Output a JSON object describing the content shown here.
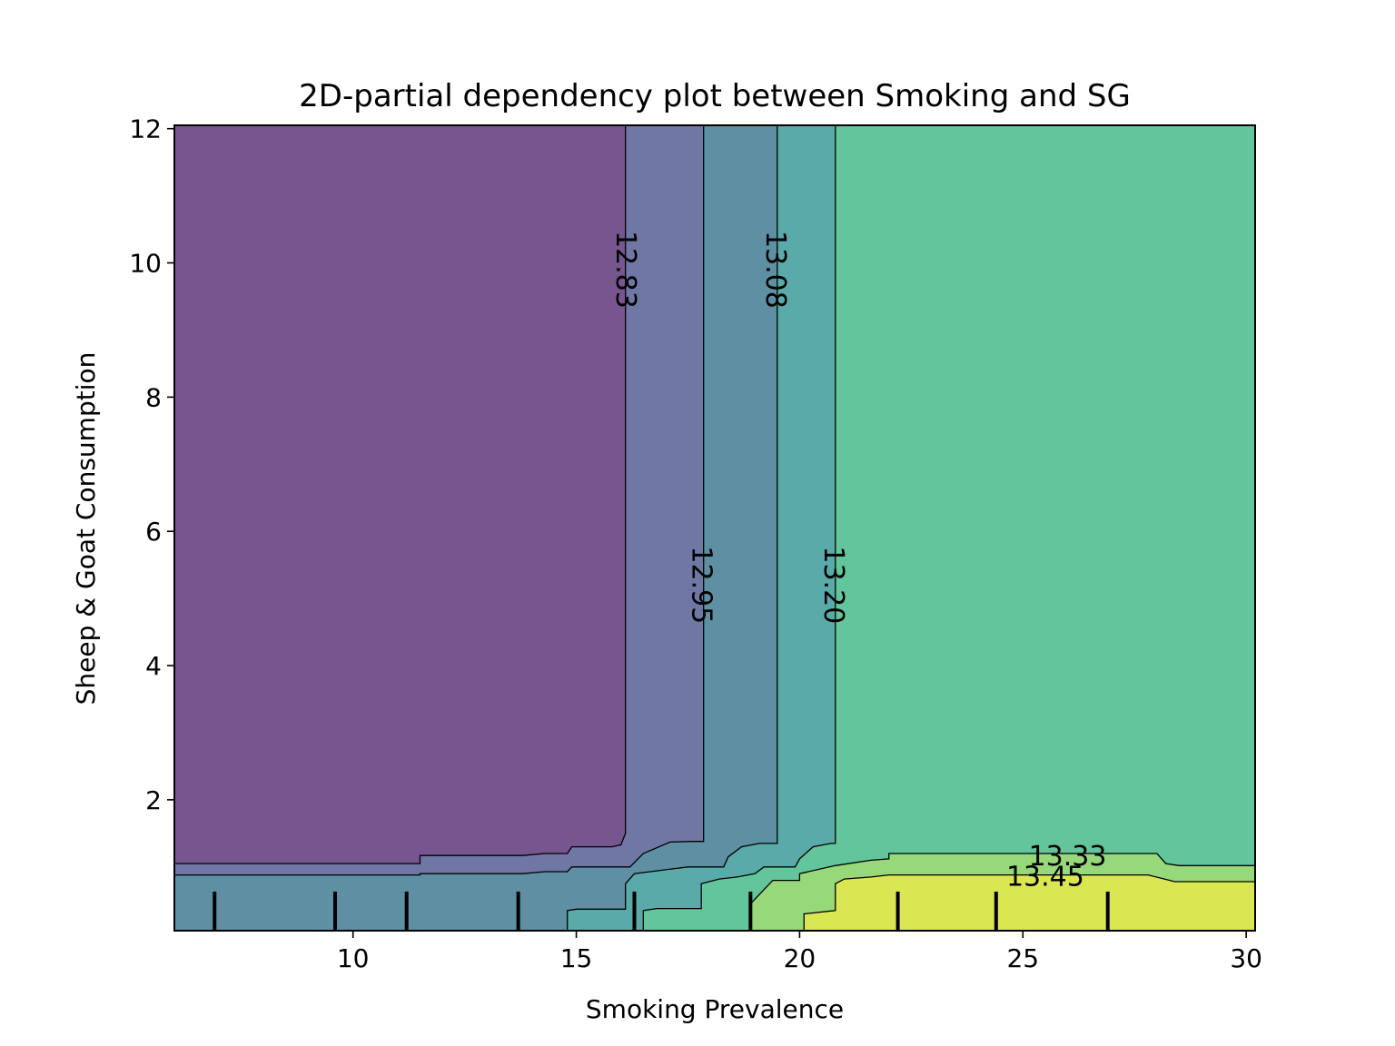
{
  "chart_data": {
    "type": "contour",
    "title": "2D-partial dependency plot between Smoking and SG",
    "xlabel": "Smoking Prevalence",
    "ylabel": "Sheep & Goat Consumption",
    "xlim": [
      6.0,
      30.2
    ],
    "ylim": [
      0.05,
      12.05
    ],
    "xticks": [
      10,
      15,
      20,
      25,
      30
    ],
    "yticks": [
      2,
      4,
      6,
      8,
      10,
      12
    ],
    "contour_levels": [
      12.83,
      12.95,
      13.08,
      13.2,
      13.33,
      13.45
    ],
    "contour_labels": [
      {
        "text": "12.83",
        "x": 16.1,
        "y": 9.9,
        "rotation": 90
      },
      {
        "text": "12.95",
        "x": 17.8,
        "y": 5.2,
        "rotation": 90
      },
      {
        "text": "13.08",
        "x": 19.45,
        "y": 9.9,
        "rotation": 90
      },
      {
        "text": "13.20",
        "x": 20.75,
        "y": 5.2,
        "rotation": 90
      },
      {
        "text": "13.33",
        "x": 26.0,
        "y": 1.15,
        "rotation": 0
      },
      {
        "text": "13.45",
        "x": 25.5,
        "y": 0.85,
        "rotation": 0
      }
    ],
    "bands": [
      {
        "range": "< 12.83",
        "color": "#77558f"
      },
      {
        "range": "12.83 - 12.95",
        "color": "#6f77a5"
      },
      {
        "range": "12.95 - 13.08",
        "color": "#5e8fa3"
      },
      {
        "range": "13.08 - 13.20",
        "color": "#59aaa8"
      },
      {
        "range": "13.20 - 13.33",
        "color": "#63c59b"
      },
      {
        "range": "13.33 - 13.45",
        "color": "#96d87a"
      },
      {
        "range": "> 13.45",
        "color": "#dbe653"
      }
    ],
    "x_deciles": [
      6.9,
      9.6,
      11.2,
      13.7,
      16.3,
      18.9,
      22.2,
      24.4,
      26.9
    ],
    "boundaries": [
      {
        "level": 12.83,
        "points": [
          [
            6.0,
            1.05
          ],
          [
            11.5,
            1.05
          ],
          [
            11.5,
            1.17
          ],
          [
            13.8,
            1.17
          ],
          [
            14.3,
            1.2
          ],
          [
            14.8,
            1.2
          ],
          [
            14.9,
            1.3
          ],
          [
            15.8,
            1.3
          ],
          [
            16.0,
            1.33
          ],
          [
            16.1,
            1.5
          ],
          [
            16.1,
            12.05
          ]
        ]
      },
      {
        "level": 12.95,
        "points": [
          [
            6.0,
            0.88
          ],
          [
            11.5,
            0.88
          ],
          [
            11.5,
            0.9
          ],
          [
            13.8,
            0.9
          ],
          [
            14.3,
            0.93
          ],
          [
            14.8,
            0.93
          ],
          [
            14.9,
            1.0
          ],
          [
            15.4,
            1.0
          ],
          [
            16.2,
            1.0
          ],
          [
            16.5,
            1.2
          ],
          [
            17.1,
            1.37
          ],
          [
            17.6,
            1.38
          ],
          [
            17.85,
            1.38
          ],
          [
            17.85,
            12.05
          ]
        ]
      },
      {
        "level": 13.08,
        "points": [
          [
            14.8,
            0.05
          ],
          [
            14.8,
            0.35
          ],
          [
            15.0,
            0.37
          ],
          [
            16.1,
            0.37
          ],
          [
            16.1,
            0.75
          ],
          [
            16.3,
            0.9
          ],
          [
            16.9,
            0.95
          ],
          [
            17.5,
            1.0
          ],
          [
            18.3,
            1.0
          ],
          [
            18.4,
            1.15
          ],
          [
            18.7,
            1.3
          ],
          [
            19.1,
            1.35
          ],
          [
            19.5,
            1.35
          ],
          [
            19.5,
            12.05
          ]
        ]
      },
      {
        "level": 13.2,
        "points": [
          [
            16.5,
            0.05
          ],
          [
            16.5,
            0.35
          ],
          [
            16.8,
            0.38
          ],
          [
            17.8,
            0.38
          ],
          [
            17.8,
            0.75
          ],
          [
            18.2,
            0.82
          ],
          [
            18.6,
            0.85
          ],
          [
            19.0,
            0.9
          ],
          [
            19.2,
            1.0
          ],
          [
            19.9,
            1.0
          ],
          [
            20.0,
            1.12
          ],
          [
            20.3,
            1.3
          ],
          [
            20.7,
            1.35
          ],
          [
            20.8,
            1.35
          ],
          [
            20.8,
            12.05
          ]
        ]
      },
      {
        "level": 13.33,
        "points": [
          [
            18.9,
            0.05
          ],
          [
            18.9,
            0.45
          ],
          [
            19.4,
            0.8
          ],
          [
            20.0,
            0.8
          ],
          [
            20.0,
            0.9
          ],
          [
            20.8,
            1.02
          ],
          [
            21.6,
            1.1
          ],
          [
            22.0,
            1.12
          ],
          [
            22.0,
            1.2
          ],
          [
            25.0,
            1.2
          ],
          [
            28.0,
            1.2
          ],
          [
            28.2,
            1.05
          ],
          [
            28.5,
            1.02
          ],
          [
            30.2,
            1.02
          ]
        ]
      },
      {
        "level": 13.45,
        "points": [
          [
            20.1,
            0.05
          ],
          [
            20.1,
            0.3
          ],
          [
            20.8,
            0.35
          ],
          [
            20.8,
            0.75
          ],
          [
            21.0,
            0.82
          ],
          [
            21.6,
            0.85
          ],
          [
            22.0,
            0.88
          ],
          [
            25.0,
            0.88
          ],
          [
            27.8,
            0.88
          ],
          [
            28.1,
            0.83
          ],
          [
            28.4,
            0.78
          ],
          [
            30.2,
            0.78
          ]
        ]
      }
    ]
  }
}
